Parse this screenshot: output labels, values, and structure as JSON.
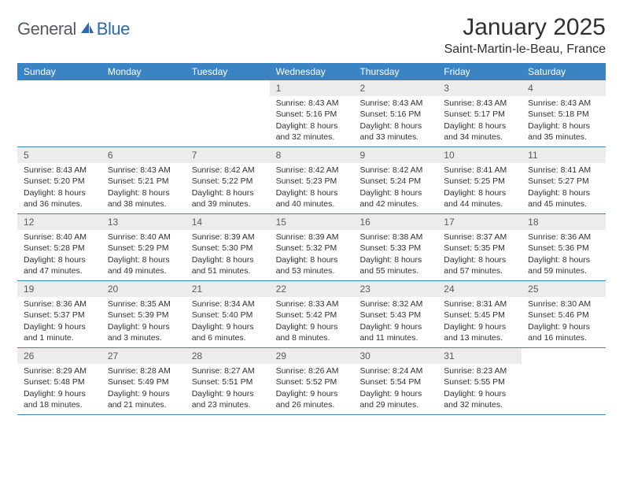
{
  "logo": {
    "general": "General",
    "blue": "Blue"
  },
  "title": "January 2025",
  "location": "Saint-Martin-le-Beau, France",
  "colors": {
    "header_bar": "#3b84c4",
    "header_text": "#ffffff",
    "daynum_bg": "#ececec",
    "daynum_text": "#5a5a5a",
    "body_text": "#303030",
    "row_border": "#3b84c4",
    "logo_gray": "#555b60",
    "logo_blue": "#2f6aa8"
  },
  "weekdays": [
    "Sunday",
    "Monday",
    "Tuesday",
    "Wednesday",
    "Thursday",
    "Friday",
    "Saturday"
  ],
  "weeks": [
    [
      null,
      null,
      null,
      {
        "n": "1",
        "sr": "Sunrise: 8:43 AM",
        "ss": "Sunset: 5:16 PM",
        "d1": "Daylight: 8 hours",
        "d2": "and 32 minutes."
      },
      {
        "n": "2",
        "sr": "Sunrise: 8:43 AM",
        "ss": "Sunset: 5:16 PM",
        "d1": "Daylight: 8 hours",
        "d2": "and 33 minutes."
      },
      {
        "n": "3",
        "sr": "Sunrise: 8:43 AM",
        "ss": "Sunset: 5:17 PM",
        "d1": "Daylight: 8 hours",
        "d2": "and 34 minutes."
      },
      {
        "n": "4",
        "sr": "Sunrise: 8:43 AM",
        "ss": "Sunset: 5:18 PM",
        "d1": "Daylight: 8 hours",
        "d2": "and 35 minutes."
      }
    ],
    [
      {
        "n": "5",
        "sr": "Sunrise: 8:43 AM",
        "ss": "Sunset: 5:20 PM",
        "d1": "Daylight: 8 hours",
        "d2": "and 36 minutes."
      },
      {
        "n": "6",
        "sr": "Sunrise: 8:43 AM",
        "ss": "Sunset: 5:21 PM",
        "d1": "Daylight: 8 hours",
        "d2": "and 38 minutes."
      },
      {
        "n": "7",
        "sr": "Sunrise: 8:42 AM",
        "ss": "Sunset: 5:22 PM",
        "d1": "Daylight: 8 hours",
        "d2": "and 39 minutes."
      },
      {
        "n": "8",
        "sr": "Sunrise: 8:42 AM",
        "ss": "Sunset: 5:23 PM",
        "d1": "Daylight: 8 hours",
        "d2": "and 40 minutes."
      },
      {
        "n": "9",
        "sr": "Sunrise: 8:42 AM",
        "ss": "Sunset: 5:24 PM",
        "d1": "Daylight: 8 hours",
        "d2": "and 42 minutes."
      },
      {
        "n": "10",
        "sr": "Sunrise: 8:41 AM",
        "ss": "Sunset: 5:25 PM",
        "d1": "Daylight: 8 hours",
        "d2": "and 44 minutes."
      },
      {
        "n": "11",
        "sr": "Sunrise: 8:41 AM",
        "ss": "Sunset: 5:27 PM",
        "d1": "Daylight: 8 hours",
        "d2": "and 45 minutes."
      }
    ],
    [
      {
        "n": "12",
        "sr": "Sunrise: 8:40 AM",
        "ss": "Sunset: 5:28 PM",
        "d1": "Daylight: 8 hours",
        "d2": "and 47 minutes."
      },
      {
        "n": "13",
        "sr": "Sunrise: 8:40 AM",
        "ss": "Sunset: 5:29 PM",
        "d1": "Daylight: 8 hours",
        "d2": "and 49 minutes."
      },
      {
        "n": "14",
        "sr": "Sunrise: 8:39 AM",
        "ss": "Sunset: 5:30 PM",
        "d1": "Daylight: 8 hours",
        "d2": "and 51 minutes."
      },
      {
        "n": "15",
        "sr": "Sunrise: 8:39 AM",
        "ss": "Sunset: 5:32 PM",
        "d1": "Daylight: 8 hours",
        "d2": "and 53 minutes."
      },
      {
        "n": "16",
        "sr": "Sunrise: 8:38 AM",
        "ss": "Sunset: 5:33 PM",
        "d1": "Daylight: 8 hours",
        "d2": "and 55 minutes."
      },
      {
        "n": "17",
        "sr": "Sunrise: 8:37 AM",
        "ss": "Sunset: 5:35 PM",
        "d1": "Daylight: 8 hours",
        "d2": "and 57 minutes."
      },
      {
        "n": "18",
        "sr": "Sunrise: 8:36 AM",
        "ss": "Sunset: 5:36 PM",
        "d1": "Daylight: 8 hours",
        "d2": "and 59 minutes."
      }
    ],
    [
      {
        "n": "19",
        "sr": "Sunrise: 8:36 AM",
        "ss": "Sunset: 5:37 PM",
        "d1": "Daylight: 9 hours",
        "d2": "and 1 minute."
      },
      {
        "n": "20",
        "sr": "Sunrise: 8:35 AM",
        "ss": "Sunset: 5:39 PM",
        "d1": "Daylight: 9 hours",
        "d2": "and 3 minutes."
      },
      {
        "n": "21",
        "sr": "Sunrise: 8:34 AM",
        "ss": "Sunset: 5:40 PM",
        "d1": "Daylight: 9 hours",
        "d2": "and 6 minutes."
      },
      {
        "n": "22",
        "sr": "Sunrise: 8:33 AM",
        "ss": "Sunset: 5:42 PM",
        "d1": "Daylight: 9 hours",
        "d2": "and 8 minutes."
      },
      {
        "n": "23",
        "sr": "Sunrise: 8:32 AM",
        "ss": "Sunset: 5:43 PM",
        "d1": "Daylight: 9 hours",
        "d2": "and 11 minutes."
      },
      {
        "n": "24",
        "sr": "Sunrise: 8:31 AM",
        "ss": "Sunset: 5:45 PM",
        "d1": "Daylight: 9 hours",
        "d2": "and 13 minutes."
      },
      {
        "n": "25",
        "sr": "Sunrise: 8:30 AM",
        "ss": "Sunset: 5:46 PM",
        "d1": "Daylight: 9 hours",
        "d2": "and 16 minutes."
      }
    ],
    [
      {
        "n": "26",
        "sr": "Sunrise: 8:29 AM",
        "ss": "Sunset: 5:48 PM",
        "d1": "Daylight: 9 hours",
        "d2": "and 18 minutes."
      },
      {
        "n": "27",
        "sr": "Sunrise: 8:28 AM",
        "ss": "Sunset: 5:49 PM",
        "d1": "Daylight: 9 hours",
        "d2": "and 21 minutes."
      },
      {
        "n": "28",
        "sr": "Sunrise: 8:27 AM",
        "ss": "Sunset: 5:51 PM",
        "d1": "Daylight: 9 hours",
        "d2": "and 23 minutes."
      },
      {
        "n": "29",
        "sr": "Sunrise: 8:26 AM",
        "ss": "Sunset: 5:52 PM",
        "d1": "Daylight: 9 hours",
        "d2": "and 26 minutes."
      },
      {
        "n": "30",
        "sr": "Sunrise: 8:24 AM",
        "ss": "Sunset: 5:54 PM",
        "d1": "Daylight: 9 hours",
        "d2": "and 29 minutes."
      },
      {
        "n": "31",
        "sr": "Sunrise: 8:23 AM",
        "ss": "Sunset: 5:55 PM",
        "d1": "Daylight: 9 hours",
        "d2": "and 32 minutes."
      },
      null
    ]
  ]
}
